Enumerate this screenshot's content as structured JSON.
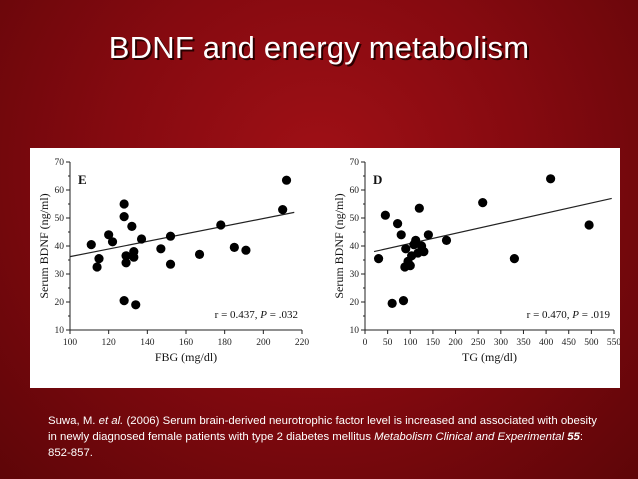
{
  "slide": {
    "title": "BDNF and energy metabolism"
  },
  "chart_data": [
    {
      "type": "scatter",
      "panel": "E",
      "xlabel": "FBG (mg/dl)",
      "ylabel": "Serum BDNF (ng/ml)",
      "xlim": [
        100,
        220
      ],
      "ylim": [
        10,
        70
      ],
      "xticks": [
        100,
        120,
        140,
        160,
        180,
        200,
        220
      ],
      "yticks": [
        10,
        20,
        30,
        40,
        50,
        60,
        70
      ],
      "stat_r": "r = 0.437, ",
      "stat_p": "P",
      "stat_pval": " = .032",
      "points": [
        {
          "x": 111,
          "y": 40.5
        },
        {
          "x": 114,
          "y": 32.5
        },
        {
          "x": 115,
          "y": 35.5
        },
        {
          "x": 120,
          "y": 44
        },
        {
          "x": 122,
          "y": 41.5
        },
        {
          "x": 128,
          "y": 55
        },
        {
          "x": 128,
          "y": 50.5
        },
        {
          "x": 128,
          "y": 20.5
        },
        {
          "x": 129,
          "y": 34
        },
        {
          "x": 129,
          "y": 36.5
        },
        {
          "x": 132,
          "y": 47
        },
        {
          "x": 133,
          "y": 38
        },
        {
          "x": 134,
          "y": 19
        },
        {
          "x": 133,
          "y": 36
        },
        {
          "x": 137,
          "y": 42.5
        },
        {
          "x": 147,
          "y": 39
        },
        {
          "x": 152,
          "y": 43.5
        },
        {
          "x": 152,
          "y": 33.5
        },
        {
          "x": 167,
          "y": 37
        },
        {
          "x": 178,
          "y": 47.5
        },
        {
          "x": 185,
          "y": 39.5
        },
        {
          "x": 191,
          "y": 38.5
        },
        {
          "x": 210,
          "y": 53
        },
        {
          "x": 212,
          "y": 63.5
        }
      ],
      "trendline": {
        "x": [
          100,
          216
        ],
        "y": [
          36.2,
          52.0
        ]
      }
    },
    {
      "type": "scatter",
      "panel": "D",
      "xlabel": "TG (mg/dl)",
      "ylabel": "Serum BDNF (ng/ml)",
      "xlim": [
        0,
        550
      ],
      "ylim": [
        10,
        70
      ],
      "xticks": [
        0,
        50,
        100,
        150,
        200,
        250,
        300,
        350,
        400,
        450,
        500,
        550
      ],
      "yticks": [
        10,
        20,
        30,
        40,
        50,
        60,
        70
      ],
      "stat_r": "r = 0.470, ",
      "stat_p": "P",
      "stat_pval": " = .019",
      "points": [
        {
          "x": 30,
          "y": 35.5
        },
        {
          "x": 45,
          "y": 51
        },
        {
          "x": 60,
          "y": 19.5
        },
        {
          "x": 72,
          "y": 48
        },
        {
          "x": 80,
          "y": 44
        },
        {
          "x": 85,
          "y": 20.5
        },
        {
          "x": 88,
          "y": 32.5
        },
        {
          "x": 90,
          "y": 39
        },
        {
          "x": 95,
          "y": 34.5
        },
        {
          "x": 100,
          "y": 33
        },
        {
          "x": 103,
          "y": 36.5
        },
        {
          "x": 108,
          "y": 40.5
        },
        {
          "x": 112,
          "y": 42
        },
        {
          "x": 117,
          "y": 37.5
        },
        {
          "x": 120,
          "y": 53.5
        },
        {
          "x": 125,
          "y": 40
        },
        {
          "x": 130,
          "y": 38
        },
        {
          "x": 140,
          "y": 44
        },
        {
          "x": 180,
          "y": 42
        },
        {
          "x": 260,
          "y": 55.5
        },
        {
          "x": 330,
          "y": 35.5
        },
        {
          "x": 410,
          "y": 64
        },
        {
          "x": 495,
          "y": 47.5
        }
      ],
      "trendline": {
        "x": [
          20,
          545
        ],
        "y": [
          38.0,
          57.0
        ]
      }
    }
  ],
  "citation": {
    "author": "Suwa, M. ",
    "etal": "et al.",
    "text": " (2006) Serum brain-derived neurotrophic factor level is increased and associated with obesity in newly diagnosed female patients with type 2 diabetes mellitus ",
    "journal": "Metabolism Clinical and Experimental",
    "volume": " 55",
    "pages": ": 852-857."
  }
}
